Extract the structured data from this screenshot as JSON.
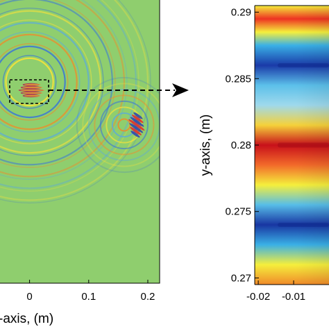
{
  "chart_data": [
    {
      "type": "heatmap",
      "panel": "left",
      "xlabel": "x-axis, (m)",
      "xlabel_visible": "-axis, (m)",
      "xticks": [
        0,
        0.1,
        0.2
      ],
      "xtick_labels": [
        "0",
        "0.1",
        "0.2"
      ],
      "xlim": [
        -0.05,
        0.22
      ],
      "background_color": "#8fce6e",
      "wavefronts": [
        {
          "center_x": 0.0,
          "center_y": 0.23,
          "radii": [
            0.04,
            0.06,
            0.08,
            0.1,
            0.12,
            0.14,
            0.16,
            0.18,
            0.2
          ]
        },
        {
          "center_x": 0.16,
          "center_y": 0.17,
          "radii": [
            0.01,
            0.02,
            0.03,
            0.04,
            0.05,
            0.06,
            0.07,
            0.08
          ]
        }
      ],
      "annotations": [
        {
          "kind": "dashed-box",
          "x": 0.0,
          "note": "zoom region"
        },
        {
          "kind": "dashed-arrow",
          "direction": "right"
        }
      ]
    },
    {
      "type": "heatmap",
      "panel": "right",
      "ylabel": "y-axis, (m)",
      "yticks": [
        0.27,
        0.275,
        0.28,
        0.285,
        0.29
      ],
      "ytick_labels": [
        "0.27",
        "0.275",
        "0.28",
        "0.285",
        "0.29"
      ],
      "ylim": [
        0.2695,
        0.2905
      ],
      "xticks": [
        -0.02,
        -0.01
      ],
      "xtick_labels": [
        "-0.02",
        "-0.01"
      ],
      "xlim": [
        -0.021,
        0.0
      ],
      "bands": [
        {
          "y": 0.2905,
          "color": "#f5ef3c"
        },
        {
          "y": 0.2895,
          "color": "#ee3322"
        },
        {
          "y": 0.2885,
          "color": "#f5ef3c"
        },
        {
          "y": 0.2875,
          "color": "#3ab0e6"
        },
        {
          "y": 0.286,
          "color": "#1a3aa8"
        },
        {
          "y": 0.2845,
          "color": "#5cc0ea"
        },
        {
          "y": 0.283,
          "color": "#9fd9ec"
        },
        {
          "y": 0.2815,
          "color": "#f5d23a"
        },
        {
          "y": 0.28,
          "color": "#c8101a"
        },
        {
          "y": 0.2785,
          "color": "#f26a2a"
        },
        {
          "y": 0.277,
          "color": "#f5ef3c"
        },
        {
          "y": 0.2755,
          "color": "#57bde8"
        },
        {
          "y": 0.274,
          "color": "#1836a2"
        },
        {
          "y": 0.2725,
          "color": "#3ab0e6"
        },
        {
          "y": 0.271,
          "color": "#f5ef3c"
        },
        {
          "y": 0.2695,
          "color": "#f08a2a"
        }
      ],
      "colormap": "jet"
    }
  ]
}
